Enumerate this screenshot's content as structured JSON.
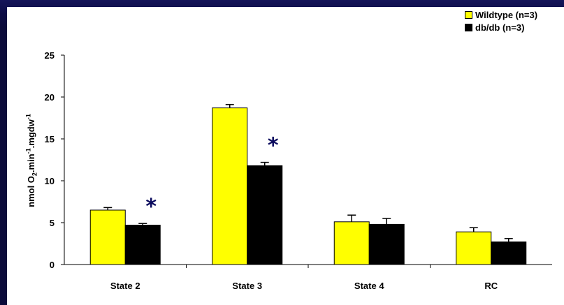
{
  "chart_data": {
    "type": "bar",
    "categories": [
      "State 2",
      "State 3",
      "State 4",
      "RC"
    ],
    "series": [
      {
        "name": "Wildtype (n=3)",
        "color": "#ffff00",
        "values": [
          6.5,
          18.7,
          5.1,
          3.9
        ],
        "errors": [
          0.3,
          0.4,
          0.8,
          0.5
        ]
      },
      {
        "name": "db/db (n=3)",
        "color": "#000000",
        "values": [
          4.7,
          11.8,
          4.8,
          2.7
        ],
        "errors": [
          0.2,
          0.4,
          0.7,
          0.4
        ]
      }
    ],
    "significance": [
      "*",
      "*",
      "",
      ""
    ],
    "ylabel": {
      "main": "nmol O",
      "sub": "2",
      "mid": ".min",
      "sup1": "-1",
      "end": ".mgdw",
      "sup2": "-1"
    },
    "ylim": [
      0,
      25
    ],
    "yticks": [
      0,
      5,
      10,
      15,
      20,
      25
    ],
    "grid": false,
    "legend_position": "top-right"
  }
}
